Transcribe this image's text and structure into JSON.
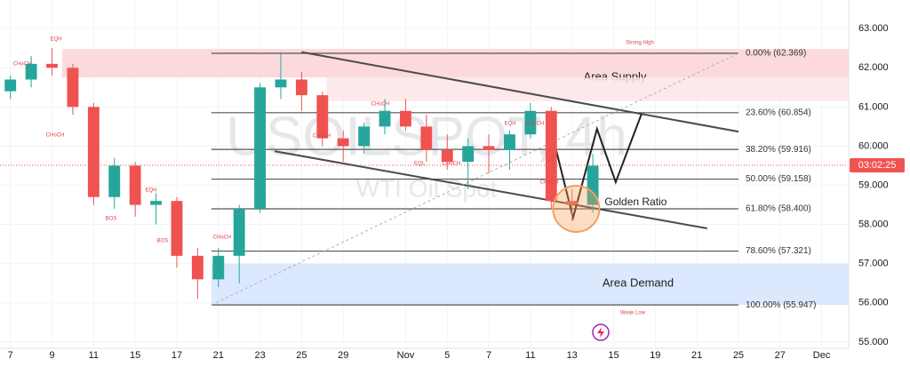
{
  "chart_data": {
    "type": "candlestick",
    "watermark": {
      "symbol": "USOILSPOT, 4h",
      "name": "WTI Oil Spot"
    },
    "x": [
      0,
      1,
      2,
      3,
      4,
      5,
      6,
      7,
      8,
      9,
      10,
      11,
      12,
      13,
      14,
      15,
      16,
      17,
      18,
      19,
      20,
      21,
      22,
      23,
      24,
      25,
      26,
      27,
      28
    ],
    "open": [
      61.4,
      61.7,
      62.1,
      62.0,
      61.0,
      58.7,
      59.5,
      58.5,
      58.6,
      57.2,
      56.6,
      57.2,
      58.4,
      61.5,
      61.7,
      61.3,
      60.2,
      60.0,
      60.5,
      60.9,
      60.5,
      59.9,
      59.6,
      60.0,
      59.9,
      60.3,
      60.9,
      58.6,
      58.5
    ],
    "high": [
      61.8,
      62.3,
      62.5,
      62.1,
      61.1,
      59.7,
      59.6,
      58.8,
      58.7,
      57.4,
      57.4,
      58.5,
      61.6,
      62.4,
      61.9,
      61.4,
      60.4,
      60.6,
      61.2,
      61.2,
      60.8,
      60.3,
      60.2,
      60.3,
      60.4,
      61.1,
      61.0,
      58.9,
      59.8
    ],
    "low": [
      61.2,
      61.5,
      61.8,
      60.8,
      58.5,
      58.4,
      58.2,
      58.0,
      56.9,
      56.1,
      56.4,
      56.5,
      58.3,
      61.2,
      60.9,
      60.0,
      59.6,
      59.8,
      60.3,
      60.4,
      59.6,
      59.4,
      58.9,
      59.3,
      59.4,
      60.2,
      58.4,
      58.1,
      58.3
    ],
    "close": [
      61.7,
      62.1,
      62.0,
      61.0,
      58.7,
      59.5,
      58.5,
      58.6,
      57.2,
      56.6,
      57.2,
      58.4,
      61.5,
      61.7,
      61.3,
      60.2,
      60.0,
      60.5,
      60.9,
      60.5,
      59.9,
      59.6,
      60.0,
      59.9,
      60.3,
      60.9,
      58.6,
      58.5,
      59.5
    ],
    "up_color": "#26a69a",
    "down_color": "#ef5350",
    "xlim": [
      -0.5,
      40.3
    ],
    "xticks": [
      {
        "value": 0,
        "label": "7"
      },
      {
        "value": 2,
        "label": "9"
      },
      {
        "value": 4,
        "label": "11"
      },
      {
        "value": 6,
        "label": "15"
      },
      {
        "value": 8,
        "label": "17"
      },
      {
        "value": 10,
        "label": "21"
      },
      {
        "value": 12,
        "label": "23"
      },
      {
        "value": 14,
        "label": "25"
      },
      {
        "value": 16,
        "label": "29"
      },
      {
        "value": 19,
        "label": "Nov"
      },
      {
        "value": 21,
        "label": "5"
      },
      {
        "value": 23,
        "label": "7"
      },
      {
        "value": 25,
        "label": "11"
      },
      {
        "value": 27,
        "label": "13"
      },
      {
        "value": 29,
        "label": "15"
      },
      {
        "value": 31,
        "label": "19"
      },
      {
        "value": 33,
        "label": "21"
      },
      {
        "value": 35,
        "label": "25"
      },
      {
        "value": 37,
        "label": "27"
      },
      {
        "value": 39,
        "label": "Dec"
      }
    ],
    "ylim": [
      54.77,
      63.73
    ],
    "yticks": [
      {
        "value": 55,
        "label": "55.000"
      },
      {
        "value": 56,
        "label": "56.000"
      },
      {
        "value": 57,
        "label": "57.000"
      },
      {
        "value": 58,
        "label": "58.000"
      },
      {
        "value": 59,
        "label": "59.000"
      },
      {
        "value": 60,
        "label": "60.000"
      },
      {
        "value": 61,
        "label": "61.000"
      },
      {
        "value": 62,
        "label": "62.000"
      },
      {
        "value": 63,
        "label": "63.000"
      }
    ],
    "grid": true,
    "zones": [
      {
        "label": "Area Supply",
        "color": "#fbd3d6",
        "x0": 2.5,
        "y0": 61.75,
        "y1": 62.48
      },
      {
        "color": "#fde4e6",
        "x0": 15.2,
        "y0": 61.15,
        "y1": 61.75
      },
      {
        "label": "Area Demand",
        "color": "#d6e4fd",
        "x0": 9.66,
        "y0": 55.947,
        "y1": 57.0
      }
    ],
    "fib": {
      "x0": 9.66,
      "x1": 35.0,
      "color": "#555555",
      "levels": [
        {
          "label": "0.00% (62.369)",
          "value": 62.369
        },
        {
          "label": "23.60% (60.854)",
          "value": 60.854
        },
        {
          "label": "38.20% (59.916)",
          "value": 59.916
        },
        {
          "label": "50.00% (59.158)",
          "value": 59.158
        },
        {
          "label": "61.80% (58.400)",
          "value": 58.4
        },
        {
          "label": "78.60% (57.321)",
          "value": 57.321
        },
        {
          "label": "100.00% (55.947)",
          "value": 55.947
        }
      ]
    },
    "trendlines": [
      {
        "points": [
          [
            14,
            62.4
          ],
          [
            35,
            60.37
          ]
        ],
        "color": "#4a4a4a"
      },
      {
        "points": [
          [
            12.7,
            59.87
          ],
          [
            33.5,
            57.9
          ]
        ],
        "color": "#4a4a4a"
      },
      {
        "points": [
          [
            9.66,
            55.947
          ],
          [
            35.0,
            62.369
          ]
        ],
        "color": "#b0b0b0",
        "dashed": true
      },
      {
        "points": [
          [
            25.77,
            60.89
          ],
          [
            27.05,
            58.17
          ],
          [
            28.2,
            60.44
          ],
          [
            29.1,
            59.08
          ],
          [
            30.34,
            60.82
          ]
        ],
        "color": "#222222"
      }
    ],
    "highlight": {
      "x": 27.2,
      "y": 58.4,
      "label": "Golden Ratio",
      "color": "#f5a05a"
    },
    "annotations": [
      "EQH",
      "CHoCH",
      "CHoCH",
      "EQH",
      "BOS",
      "BOS",
      "CHoCH",
      "CHoCH",
      "CHoCH",
      "EQL",
      "CHoCH",
      "EQH",
      "CHoCH",
      "CHoCH",
      "Strong High",
      "Weak Low"
    ],
    "last_price": 59.51,
    "countdown": "03:02:25"
  }
}
